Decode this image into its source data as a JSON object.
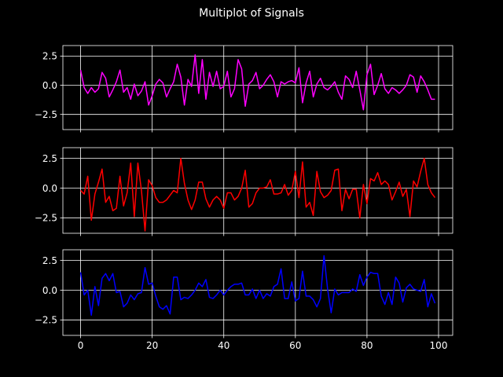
{
  "chart_data": {
    "type": "line",
    "title": "Multiplot of Signals",
    "shared_x": true,
    "xlim": [
      -4.95,
      103.95
    ],
    "xticks": [
      0,
      20,
      40,
      60,
      80,
      100
    ],
    "xtick_labels": [
      "0",
      "20",
      "40",
      "60",
      "80",
      "100"
    ],
    "ylim": [
      -3.8,
      3.4
    ],
    "yticks": [
      -2.5,
      0.0,
      2.5
    ],
    "ytick_labels": [
      "−2.5",
      "0.0",
      "2.5"
    ],
    "grid": true,
    "background": "#000000",
    "foreground": "#ffffff",
    "x": [
      0,
      1,
      2,
      3,
      4,
      5,
      6,
      7,
      8,
      9,
      10,
      11,
      12,
      13,
      14,
      15,
      16,
      17,
      18,
      19,
      20,
      21,
      22,
      23,
      24,
      25,
      26,
      27,
      28,
      29,
      30,
      31,
      32,
      33,
      34,
      35,
      36,
      37,
      38,
      39,
      40,
      41,
      42,
      43,
      44,
      45,
      46,
      47,
      48,
      49,
      50,
      51,
      52,
      53,
      54,
      55,
      56,
      57,
      58,
      59,
      60,
      61,
      62,
      63,
      64,
      65,
      66,
      67,
      68,
      69,
      70,
      71,
      72,
      73,
      74,
      75,
      76,
      77,
      78,
      79,
      80,
      81,
      82,
      83,
      84,
      85,
      86,
      87,
      88,
      89,
      90,
      91,
      92,
      93,
      94,
      95,
      96,
      97,
      98,
      99
    ],
    "subplots": [
      {
        "color": "#ff00ff",
        "values": [
          1.3,
          -0.2,
          -0.7,
          -0.2,
          -0.6,
          -0.3,
          1.1,
          0.6,
          -1.0,
          -0.4,
          0.3,
          1.3,
          -0.6,
          -0.2,
          -1.2,
          0.1,
          -0.9,
          -0.5,
          0.3,
          -1.7,
          -0.9,
          0.1,
          0.5,
          0.2,
          -1.0,
          -0.3,
          0.3,
          1.8,
          0.7,
          -1.7,
          0.5,
          -0.1,
          2.6,
          -0.7,
          2.2,
          -1.2,
          1.1,
          -0.1,
          1.2,
          -0.3,
          -0.1,
          1.2,
          -1.0,
          -0.3,
          2.2,
          1.4,
          -1.8,
          0.1,
          0.4,
          1.1,
          -0.3,
          0.0,
          0.5,
          0.9,
          0.3,
          -1.0,
          0.3,
          0.1,
          0.3,
          0.4,
          0.2,
          1.5,
          -1.5,
          0.2,
          1.2,
          -1.0,
          0.1,
          0.6,
          -0.2,
          -0.4,
          -0.1,
          0.3,
          -0.6,
          -1.2,
          0.8,
          0.5,
          -0.2,
          1.2,
          -0.4,
          -2.1,
          0.9,
          1.8,
          -0.8,
          0.0,
          1.0,
          -0.3,
          -0.7,
          -0.2,
          -0.4,
          -0.7,
          -0.4,
          0.0,
          0.9,
          0.7,
          -0.6,
          0.8,
          0.3,
          -0.4,
          -1.2,
          -1.2
        ]
      },
      {
        "color": "#ff0000",
        "values": [
          -0.2,
          -0.5,
          1.0,
          -2.7,
          -0.5,
          0.5,
          1.6,
          -1.2,
          -0.7,
          -1.9,
          -1.7,
          1.0,
          -1.5,
          -0.4,
          2.1,
          -2.4,
          2.1,
          -0.2,
          -3.6,
          0.7,
          0.2,
          -0.8,
          -1.2,
          -1.2,
          -1.0,
          -0.6,
          -0.2,
          -0.4,
          2.5,
          0.4,
          -1.0,
          -1.8,
          -1.0,
          0.5,
          0.5,
          -0.9,
          -1.6,
          -1.0,
          -0.7,
          -1.0,
          -1.7,
          -0.4,
          -0.4,
          -1.0,
          -0.7,
          0.0,
          1.5,
          -1.6,
          -1.3,
          -0.4,
          0.0,
          0.0,
          0.1,
          0.7,
          -0.5,
          -0.5,
          -0.4,
          0.3,
          -0.6,
          -0.2,
          1.4,
          -0.8,
          2.2,
          -1.6,
          -1.2,
          -2.3,
          1.4,
          -0.3,
          -0.8,
          -0.6,
          -0.2,
          1.5,
          1.6,
          -1.9,
          -0.1,
          -0.9,
          -0.1,
          -0.1,
          -2.5,
          0.3,
          -1.3,
          0.8,
          0.6,
          1.3,
          0.3,
          0.6,
          0.3,
          -1.0,
          -0.3,
          0.5,
          -0.7,
          -0.1,
          -2.4,
          0.6,
          0.1,
          1.4,
          2.5,
          0.3,
          -0.4,
          -0.8
        ]
      },
      {
        "color": "#0000ff",
        "values": [
          1.5,
          -0.4,
          0.0,
          -2.1,
          0.3,
          -1.3,
          1.0,
          1.4,
          0.8,
          1.4,
          -0.2,
          -0.1,
          -1.4,
          -1.1,
          -0.4,
          -0.8,
          -0.3,
          -0.2,
          1.9,
          0.5,
          0.6,
          -0.5,
          -1.4,
          -1.6,
          -1.3,
          -2.0,
          1.1,
          1.1,
          -0.8,
          -0.6,
          -0.7,
          -0.4,
          0.0,
          0.6,
          0.3,
          0.9,
          -0.6,
          -0.7,
          -0.4,
          0.0,
          -0.4,
          0.0,
          0.3,
          0.5,
          0.5,
          0.6,
          -0.4,
          -0.4,
          0.1,
          -0.7,
          0.0,
          -0.7,
          -0.3,
          -0.5,
          0.3,
          0.5,
          1.8,
          -0.7,
          -0.7,
          0.7,
          -0.9,
          -0.7,
          1.6,
          -0.5,
          -0.5,
          -0.8,
          -1.4,
          -0.7,
          2.9,
          0.1,
          -1.9,
          0.1,
          -0.4,
          -0.2,
          -0.2,
          -0.2,
          0.1,
          -0.1,
          1.3,
          0.4,
          1.1,
          1.5,
          1.4,
          1.4,
          -0.5,
          -1.2,
          -0.2,
          -1.2,
          1.1,
          0.6,
          -1.0,
          0.2,
          0.5,
          0.1,
          0.0,
          -0.1,
          0.9,
          -1.4,
          -0.3,
          -1.1
        ]
      }
    ]
  }
}
